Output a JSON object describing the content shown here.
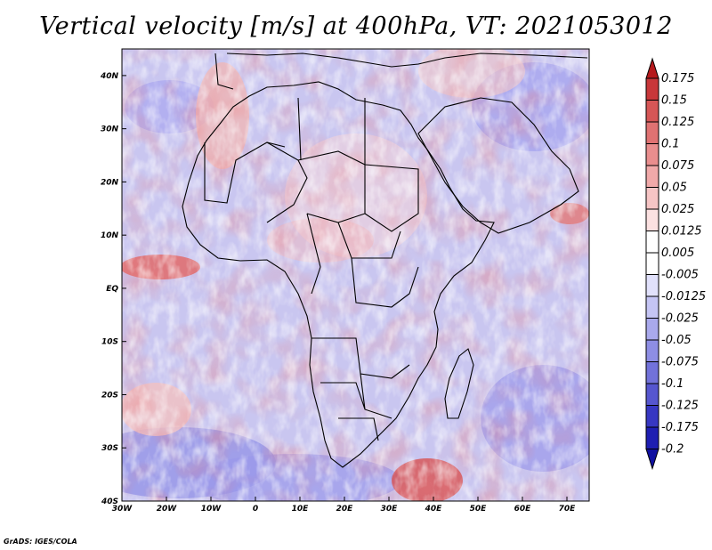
{
  "title": "Vertical velocity [m/s] at 400hPa, VT: 2021053012",
  "credit": "GrADS: IGES/COLA",
  "map": {
    "lon_range": [
      -30,
      75
    ],
    "lat_range": [
      -40,
      45
    ],
    "lon_ticks": [
      "30W",
      "20W",
      "10W",
      "0",
      "10E",
      "20E",
      "30E",
      "40E",
      "50E",
      "60E",
      "70E"
    ],
    "lat_ticks": [
      "40N",
      "30N",
      "20N",
      "10N",
      "EQ",
      "10S",
      "20S",
      "30S",
      "40S"
    ],
    "land_outline": "Africa, Arabian Peninsula, Madagascar with country borders"
  },
  "colorbar": {
    "levels": [
      "0.175",
      "0.15",
      "0.125",
      "0.1",
      "0.075",
      "0.05",
      "0.025",
      "0.0125",
      "0.005",
      "-0.005",
      "-0.0125",
      "-0.025",
      "-0.05",
      "-0.075",
      "-0.1",
      "-0.125",
      "-0.175",
      "-0.2"
    ],
    "colors": [
      "#b5191c",
      "#c8373a",
      "#d65656",
      "#e07272",
      "#e98e8e",
      "#f0a9a9",
      "#f6c5c5",
      "#fbe1e1",
      "#ffffff",
      "#ffffff",
      "#e1e1fb",
      "#c5c5f4",
      "#a9a9ec",
      "#8e8ee4",
      "#7272da",
      "#5656cf",
      "#3737c2",
      "#1e1eb2",
      "#1010a0"
    ]
  },
  "colors": {
    "positive": "#d03030",
    "negative": "#3535c0",
    "background": "#ffffff"
  }
}
